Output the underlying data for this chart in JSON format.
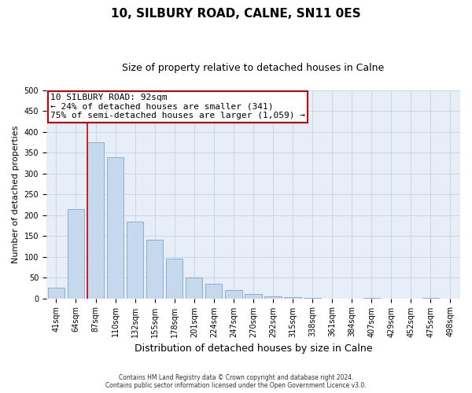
{
  "title": "10, SILBURY ROAD, CALNE, SN11 0ES",
  "subtitle": "Size of property relative to detached houses in Calne",
  "xlabel": "Distribution of detached houses by size in Calne",
  "ylabel": "Number of detached properties",
  "categories": [
    "41sqm",
    "64sqm",
    "87sqm",
    "110sqm",
    "132sqm",
    "155sqm",
    "178sqm",
    "201sqm",
    "224sqm",
    "247sqm",
    "270sqm",
    "292sqm",
    "315sqm",
    "338sqm",
    "361sqm",
    "384sqm",
    "407sqm",
    "429sqm",
    "452sqm",
    "475sqm",
    "498sqm"
  ],
  "values": [
    25,
    215,
    375,
    340,
    185,
    140,
    95,
    50,
    35,
    20,
    10,
    5,
    3,
    1,
    0,
    0,
    1,
    0,
    0,
    1,
    0
  ],
  "bar_color": "#c5d8ee",
  "bar_edgecolor": "#7aa8cc",
  "redline_bar_index": 2,
  "annotation_line1": "10 SILBURY ROAD: 92sqm",
  "annotation_line2": "← 24% of detached houses are smaller (341)",
  "annotation_line3": "75% of semi-detached houses are larger (1,059) →",
  "annotation_box_facecolor": "#ffffff",
  "annotation_box_edgecolor": "#cc0000",
  "redline_color": "#cc0000",
  "ylim_min": 0,
  "ylim_max": 500,
  "yticks": [
    0,
    50,
    100,
    150,
    200,
    250,
    300,
    350,
    400,
    450,
    500
  ],
  "grid_color": "#c8d8e8",
  "plot_bg_color": "#e8eef8",
  "footer1": "Contains HM Land Registry data © Crown copyright and database right 2024.",
  "footer2": "Contains public sector information licensed under the Open Government Licence v3.0.",
  "title_fontsize": 11,
  "subtitle_fontsize": 9,
  "xlabel_fontsize": 9,
  "ylabel_fontsize": 8,
  "tick_fontsize": 7,
  "annot_fontsize": 8
}
